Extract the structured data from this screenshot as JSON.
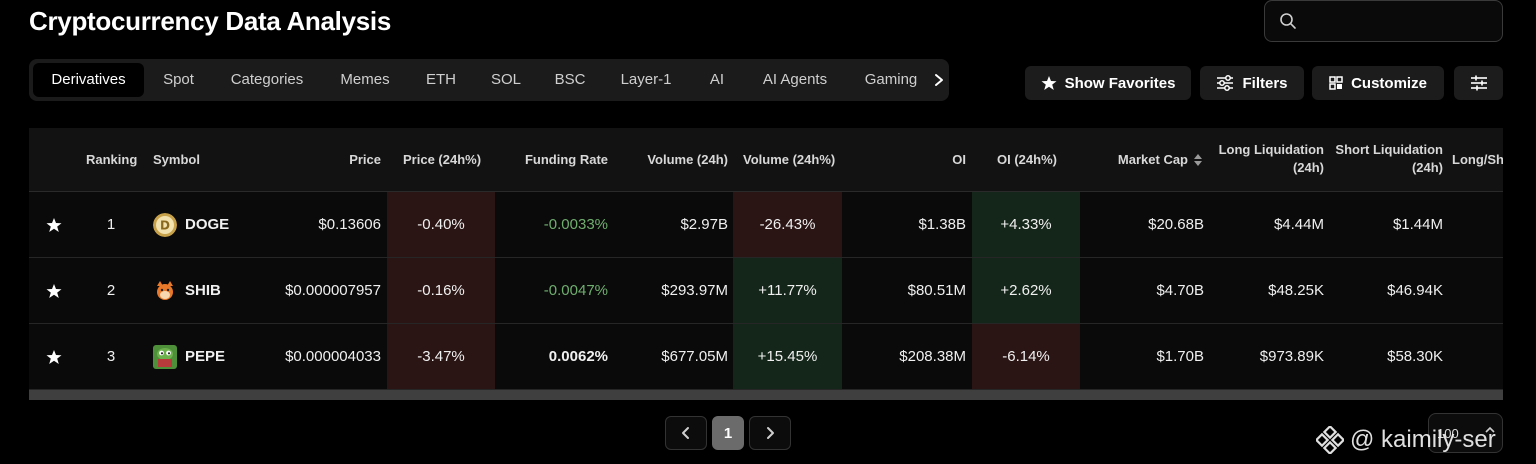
{
  "page": {
    "title": "Cryptocurrency Data Analysis"
  },
  "search": {
    "placeholder": ""
  },
  "tabs": [
    {
      "label": "Derivatives",
      "active": true
    },
    {
      "label": "Spot"
    },
    {
      "label": "Categories"
    },
    {
      "label": "Memes"
    },
    {
      "label": "ETH"
    },
    {
      "label": "SOL"
    },
    {
      "label": "BSC"
    },
    {
      "label": "Layer-1"
    },
    {
      "label": "AI"
    },
    {
      "label": "AI Agents"
    },
    {
      "label": "Gaming"
    }
  ],
  "toolbar": {
    "favorites_label": "Show Favorites",
    "filters_label": "Filters",
    "customize_label": "Customize"
  },
  "table": {
    "headers": {
      "ranking": "Ranking",
      "symbol": "Symbol",
      "price": "Price",
      "price_change": "Price (24h%)",
      "funding_rate": "Funding Rate",
      "volume": "Volume (24h)",
      "volume_change": "Volume (24h%)",
      "oi": "OI",
      "oi_change": "OI (24h%)",
      "market_cap": "Market Cap",
      "long_liq_1": "Long Liquidation",
      "long_liq_2": "(24h)",
      "short_liq_1": "Short Liquidation",
      "short_liq_2": "(24h)",
      "long_short": "Long/Sh"
    },
    "rows": [
      {
        "rank": "1",
        "symbol": "DOGE",
        "price": "$0.13606",
        "price_change": "-0.40%",
        "funding_rate": "-0.0033%",
        "volume": "$2.97B",
        "volume_change": "-26.43%",
        "oi": "$1.38B",
        "oi_change": "+4.33%",
        "market_cap": "$20.68B",
        "long_liq": "$4.44M",
        "short_liq": "$1.44M"
      },
      {
        "rank": "2",
        "symbol": "SHIB",
        "price": "$0.000007957",
        "price_change": "-0.16%",
        "funding_rate": "-0.0047%",
        "volume": "$293.97M",
        "volume_change": "+11.77%",
        "oi": "$80.51M",
        "oi_change": "+2.62%",
        "market_cap": "$4.70B",
        "long_liq": "$48.25K",
        "short_liq": "$46.94K"
      },
      {
        "rank": "3",
        "symbol": "PEPE",
        "price": "$0.000004033",
        "price_change": "-3.47%",
        "funding_rate": "0.0062%",
        "volume": "$677.05M",
        "volume_change": "+15.45%",
        "oi": "$208.38M",
        "oi_change": "-6.14%",
        "market_cap": "$1.70B",
        "long_liq": "$973.89K",
        "short_liq": "$58.30K"
      }
    ]
  },
  "pagination": {
    "current_page": "1",
    "per_page": "100"
  },
  "watermark": {
    "text": "@ kaimily-ser"
  },
  "colors": {
    "negative_bg": "#2a1414",
    "positive_bg": "#142619",
    "funding_negative": "#6fae6f",
    "funding_positive": "#f0f0f0"
  }
}
